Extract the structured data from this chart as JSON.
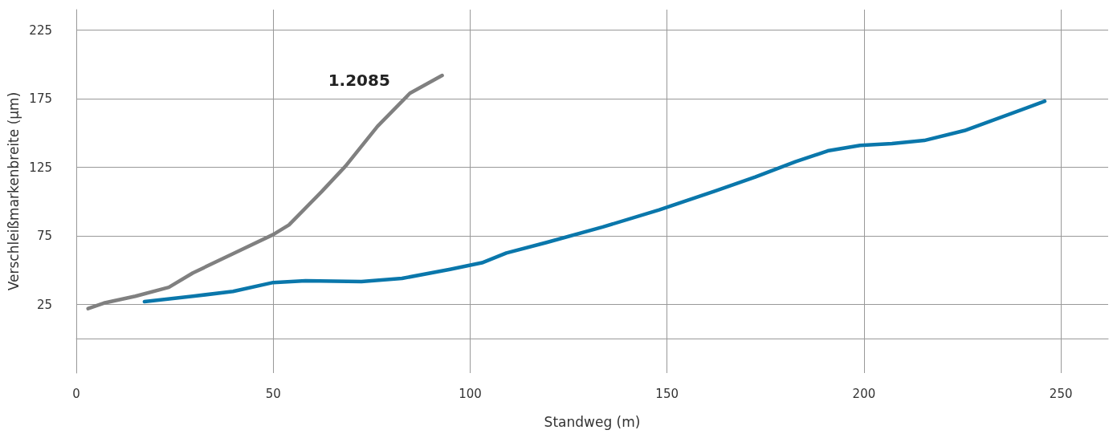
{
  "chart_data": {
    "type": "line",
    "xlabel": "Standweg (m)",
    "ylabel": "Verschleißmarkenbreite (µm)",
    "xlim": [
      0,
      262
    ],
    "xticks": [
      0,
      50,
      100,
      150,
      200,
      250
    ],
    "ylim": [
      -25,
      240
    ],
    "yticks": [
      25,
      75,
      125,
      175,
      225
    ],
    "grid": true,
    "marker": "none",
    "line_style": "solid",
    "series": [
      {
        "name": "1.2085",
        "color": "#808080",
        "x": [
          3,
          7,
          15,
          23.5,
          29.6,
          39.8,
          50,
          54,
          62.2,
          68.4,
          76.5,
          84.7,
          92.9
        ],
        "values": [
          22,
          26,
          31,
          37.5,
          48,
          62,
          76,
          83,
          107,
          126,
          155,
          179,
          192
        ]
      },
      {
        "color": "#0a77ab",
        "x": [
          17.3,
          29.6,
          39.8,
          50,
          58.2,
          72.4,
          82.7,
          94.9,
          103,
          109.2,
          119.4,
          133.7,
          148,
          162.2,
          172.4,
          182.7,
          190.8,
          199,
          207.1,
          215.3,
          225.5,
          245.9
        ],
        "values": [
          27,
          31,
          34.5,
          41,
          42.3,
          41.7,
          44,
          50.6,
          55.4,
          62.5,
          70.2,
          81.5,
          94,
          107.7,
          117.9,
          129.2,
          137,
          141,
          142.3,
          144.6,
          151.8,
          173.2
        ]
      }
    ]
  }
}
